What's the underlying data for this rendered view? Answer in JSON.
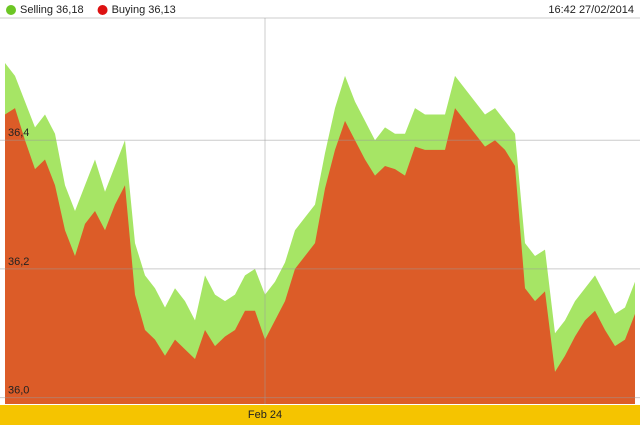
{
  "chart_data": {
    "type": "area",
    "timestamp": "16:42 27/02/2014",
    "categories": [
      null,
      null,
      null,
      null,
      null,
      null,
      null,
      null,
      null,
      null,
      null,
      null,
      null,
      null,
      null,
      null,
      null,
      null,
      null,
      null,
      null,
      null,
      null,
      null,
      null,
      null,
      "Feb 24",
      null,
      null,
      null,
      null,
      null,
      null,
      null,
      null,
      null,
      null,
      null,
      null,
      null,
      null,
      null,
      null,
      null,
      null,
      null,
      null,
      null,
      null,
      null,
      null,
      null,
      null,
      null,
      null,
      null,
      null,
      null,
      null,
      null,
      null,
      null,
      null,
      null
    ],
    "series": [
      {
        "name": "Selling",
        "current": "36,18",
        "color": "#a6e565",
        "dot_color": "#6cc624",
        "values": [
          36.52,
          36.5,
          36.46,
          36.42,
          36.44,
          36.41,
          36.33,
          36.29,
          36.33,
          36.37,
          36.32,
          36.36,
          36.4,
          36.24,
          36.19,
          36.17,
          36.14,
          36.17,
          36.15,
          36.12,
          36.19,
          36.16,
          36.15,
          36.16,
          36.19,
          36.2,
          36.16,
          36.18,
          36.21,
          36.26,
          36.28,
          36.3,
          36.38,
          36.45,
          36.5,
          36.46,
          36.43,
          36.4,
          36.42,
          36.41,
          36.41,
          36.45,
          36.44,
          36.44,
          36.44,
          36.5,
          36.48,
          36.46,
          36.44,
          36.45,
          36.43,
          36.41,
          36.24,
          36.22,
          36.23,
          36.1,
          36.12,
          36.15,
          36.17,
          36.19,
          36.16,
          36.13,
          36.14,
          36.18
        ]
      },
      {
        "name": "Buying",
        "current": "36,13",
        "color": "#dc5c28",
        "dot_color": "#dd1111",
        "values": [
          36.44,
          36.45,
          36.4,
          36.355,
          36.37,
          36.33,
          36.26,
          36.22,
          36.27,
          36.29,
          36.26,
          36.3,
          36.33,
          36.16,
          36.105,
          36.09,
          36.065,
          36.09,
          36.075,
          36.06,
          36.105,
          36.08,
          36.095,
          36.105,
          36.135,
          36.135,
          36.09,
          36.12,
          36.15,
          36.2,
          36.22,
          36.24,
          36.325,
          36.385,
          36.43,
          36.4,
          36.37,
          36.345,
          36.36,
          36.355,
          36.345,
          36.39,
          36.385,
          36.385,
          36.385,
          36.45,
          36.43,
          36.41,
          36.39,
          36.4,
          36.385,
          36.36,
          36.17,
          36.15,
          36.165,
          36.04,
          36.065,
          36.095,
          36.12,
          36.135,
          36.105,
          36.08,
          36.09,
          36.13
        ]
      }
    ],
    "ylim": [
      35.99,
      36.59
    ],
    "yticks": [
      {
        "value": 36.0,
        "label": "36,0"
      },
      {
        "value": 36.2,
        "label": "36,2"
      },
      {
        "value": 36.4,
        "label": "36,4"
      }
    ],
    "grid": true
  }
}
